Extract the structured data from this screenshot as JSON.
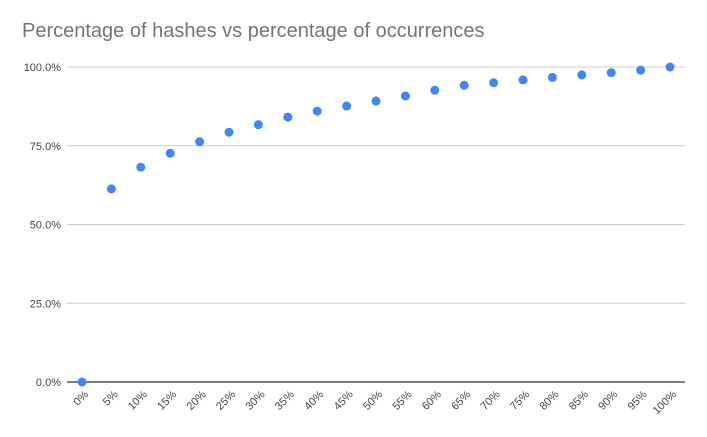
{
  "chart_data": {
    "type": "scatter",
    "title": "Percentage of hashes vs percentage of occurrences",
    "xlabel": "",
    "ylabel": "",
    "x": [
      "0%",
      "5%",
      "10%",
      "15%",
      "20%",
      "25%",
      "30%",
      "35%",
      "40%",
      "45%",
      "50%",
      "55%",
      "60%",
      "65%",
      "70%",
      "75%",
      "80%",
      "85%",
      "90%",
      "95%",
      "100%"
    ],
    "series": [
      {
        "values": [
          0.0,
          61.3,
          68.2,
          72.6,
          76.3,
          79.3,
          81.7,
          84.1,
          86.0,
          87.6,
          89.2,
          90.8,
          92.6,
          94.2,
          95.0,
          95.9,
          96.7,
          97.5,
          98.2,
          99.0,
          100.0
        ],
        "color": "#4285f4"
      }
    ],
    "yticks": [
      "0.0%",
      "25.0%",
      "50.0%",
      "75.0%",
      "100.0%"
    ],
    "ylim": [
      0,
      100
    ],
    "grid": true,
    "legend": "none"
  }
}
